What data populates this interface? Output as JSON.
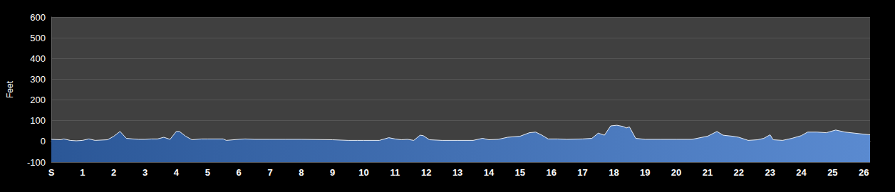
{
  "chart_data": {
    "type": "area",
    "y_label": "Feet",
    "color": "#5a8ad0",
    "grid": true,
    "xlim": [
      0,
      26.2
    ],
    "xticks": [
      {
        "value": 0,
        "label": "S"
      },
      1,
      2,
      3,
      4,
      5,
      6,
      7,
      8,
      9,
      10,
      11,
      12,
      13,
      14,
      15,
      16,
      17,
      18,
      19,
      20,
      21,
      22,
      23,
      24,
      25,
      26
    ],
    "ylim": [
      -100,
      600
    ],
    "yticks": [
      -100,
      0,
      100,
      200,
      300,
      400,
      500,
      600
    ],
    "x": [
      0,
      0.3,
      0.4,
      0.6,
      0.8,
      1.0,
      1.2,
      1.4,
      1.8,
      2.0,
      2.2,
      2.4,
      2.6,
      2.8,
      3.0,
      3.2,
      3.4,
      3.6,
      3.8,
      4.0,
      4.1,
      4.3,
      4.5,
      4.8,
      5.0,
      5.5,
      5.6,
      6.0,
      6.2,
      6.5,
      7.0,
      7.5,
      8.0,
      9.0,
      9.5,
      9.8,
      10.0,
      10.5,
      10.8,
      11.0,
      11.2,
      11.4,
      11.6,
      11.8,
      11.9,
      12.1,
      12.5,
      13.0,
      13.5,
      13.8,
      14.0,
      14.3,
      14.6,
      15.0,
      15.3,
      15.5,
      15.7,
      15.9,
      16.2,
      16.5,
      17.0,
      17.3,
      17.5,
      17.7,
      17.9,
      18.1,
      18.3,
      18.4,
      18.5,
      18.7,
      19.0,
      19.5,
      20.0,
      20.5,
      21.0,
      21.3,
      21.5,
      21.8,
      22.0,
      22.3,
      22.6,
      22.8,
      23.0,
      23.1,
      23.4,
      23.7,
      24.0,
      24.2,
      24.5,
      24.8,
      25.1,
      25.4,
      25.7,
      26.0,
      26.2
    ],
    "values": [
      10,
      8,
      12,
      5,
      3,
      5,
      12,
      5,
      8,
      25,
      48,
      15,
      12,
      10,
      10,
      12,
      12,
      20,
      10,
      48,
      48,
      25,
      8,
      12,
      12,
      12,
      5,
      10,
      12,
      10,
      10,
      10,
      10,
      8,
      5,
      5,
      5,
      5,
      18,
      12,
      8,
      10,
      5,
      30,
      28,
      8,
      5,
      5,
      5,
      15,
      8,
      10,
      20,
      25,
      42,
      45,
      30,
      12,
      12,
      10,
      12,
      15,
      40,
      30,
      75,
      78,
      72,
      65,
      70,
      15,
      10,
      10,
      10,
      10,
      25,
      48,
      30,
      25,
      20,
      5,
      8,
      15,
      32,
      8,
      5,
      15,
      28,
      45,
      45,
      42,
      55,
      45,
      40,
      35,
      32
    ]
  }
}
